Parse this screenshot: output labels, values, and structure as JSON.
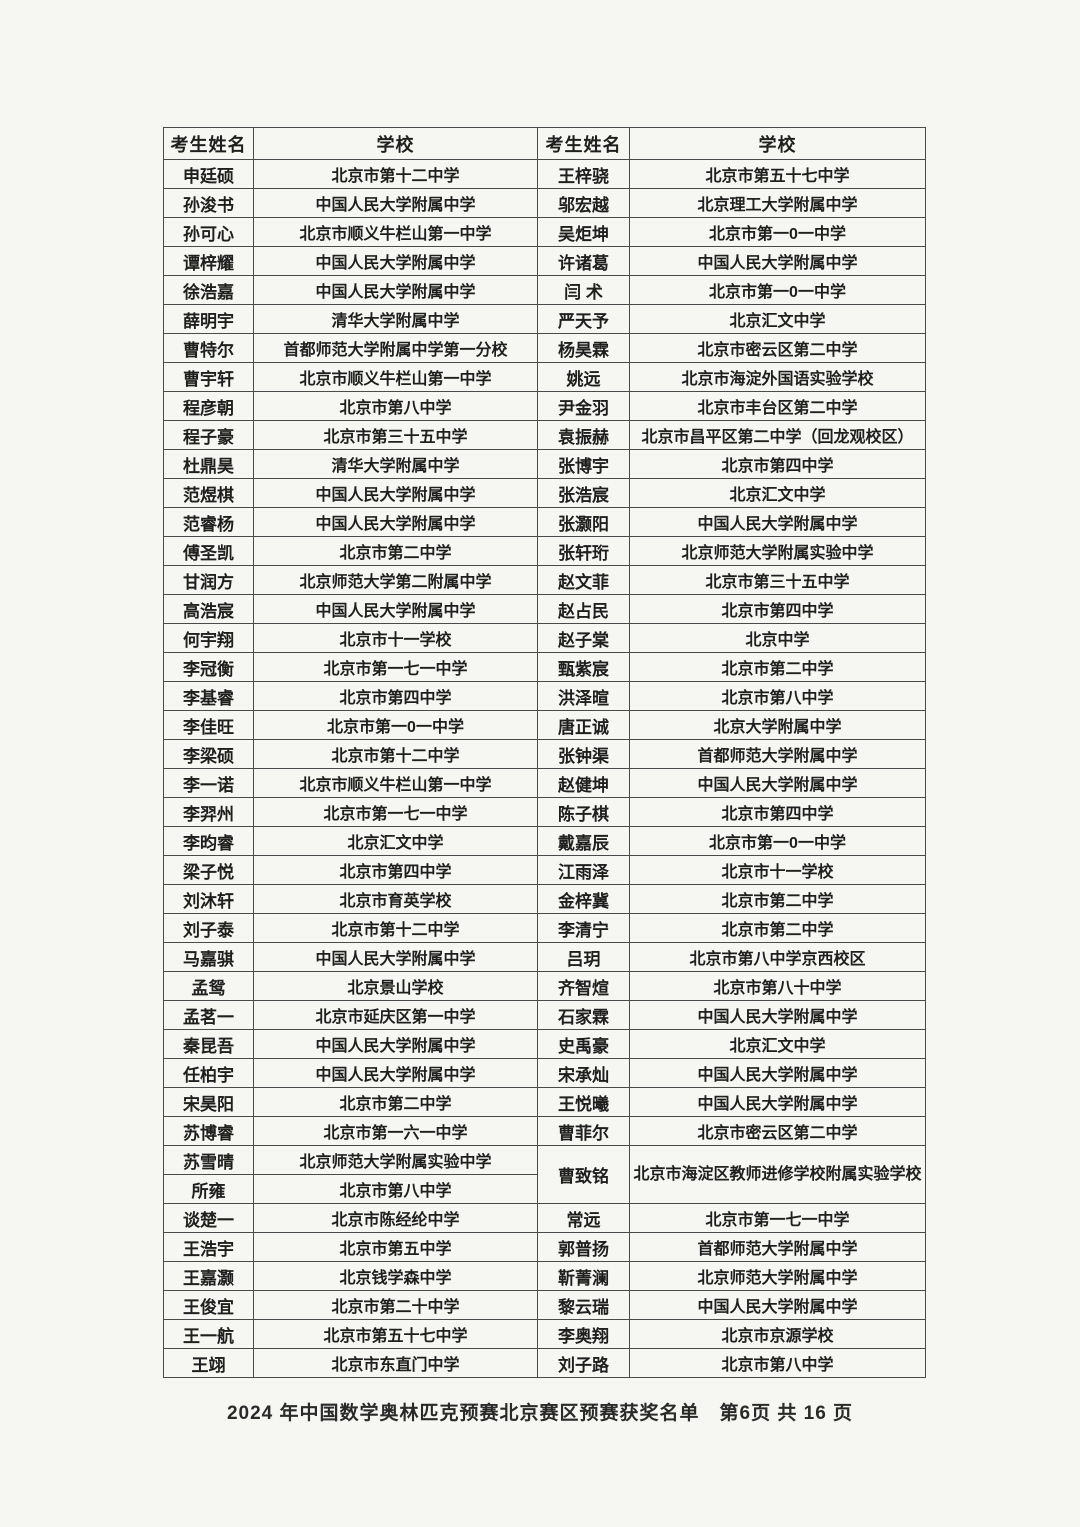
{
  "page": {
    "background": "#f6f6f3",
    "border_color": "#4a4a4a",
    "text_color": "#1f1f1f"
  },
  "table": {
    "headers": [
      "考生姓名",
      "学校",
      "考生姓名",
      "学校"
    ],
    "rows": [
      {
        "left": {
          "name": "申廷硕",
          "school": "北京市第十二中学"
        },
        "right": {
          "name": "王梓骁",
          "school": "北京市第五十七中学"
        }
      },
      {
        "left": {
          "name": "孙浚书",
          "school": "中国人民大学附属中学"
        },
        "right": {
          "name": "邬宏越",
          "school": "北京理工大学附属中学"
        }
      },
      {
        "left": {
          "name": "孙可心",
          "school": "北京市顺义牛栏山第一中学"
        },
        "right": {
          "name": "吴炬坤",
          "school": "北京市第一0一中学"
        }
      },
      {
        "left": {
          "name": "谭梓耀",
          "school": "中国人民大学附属中学"
        },
        "right": {
          "name": "许诸葛",
          "school": "中国人民大学附属中学"
        }
      },
      {
        "left": {
          "name": "徐浩嘉",
          "school": "中国人民大学附属中学"
        },
        "right": {
          "name": "闫 术",
          "school": "北京市第一0一中学"
        }
      },
      {
        "left": {
          "name": "薛明宇",
          "school": "清华大学附属中学"
        },
        "right": {
          "name": "严天予",
          "school": "北京汇文中学"
        }
      },
      {
        "left": {
          "name": "曹特尔",
          "school": "首都师范大学附属中学第一分校"
        },
        "right": {
          "name": "杨昊霖",
          "school": "北京市密云区第二中学"
        }
      },
      {
        "left": {
          "name": "曹宇轩",
          "school": "北京市顺义牛栏山第一中学"
        },
        "right": {
          "name": "姚远",
          "school": "北京市海淀外国语实验学校"
        }
      },
      {
        "left": {
          "name": "程彦朝",
          "school": "北京市第八中学"
        },
        "right": {
          "name": "尹金羽",
          "school": "北京市丰台区第二中学"
        }
      },
      {
        "left": {
          "name": "程子豪",
          "school": "北京市第三十五中学"
        },
        "right": {
          "name": "袁振赫",
          "school": "北京市昌平区第二中学（回龙观校区）"
        }
      },
      {
        "left": {
          "name": "杜鼎昊",
          "school": "清华大学附属中学"
        },
        "right": {
          "name": "张博宇",
          "school": "北京市第四中学"
        }
      },
      {
        "left": {
          "name": "范煜棋",
          "school": "中国人民大学附属中学"
        },
        "right": {
          "name": "张浩宸",
          "school": "北京汇文中学"
        }
      },
      {
        "left": {
          "name": "范睿杨",
          "school": "中国人民大学附属中学"
        },
        "right": {
          "name": "张灏阳",
          "school": "中国人民大学附属中学"
        }
      },
      {
        "left": {
          "name": "傅圣凯",
          "school": "北京市第二中学"
        },
        "right": {
          "name": "张轩珩",
          "school": "北京师范大学附属实验中学"
        }
      },
      {
        "left": {
          "name": "甘润方",
          "school": "北京师范大学第二附属中学"
        },
        "right": {
          "name": "赵文菲",
          "school": "北京市第三十五中学"
        }
      },
      {
        "left": {
          "name": "高浩宸",
          "school": "中国人民大学附属中学"
        },
        "right": {
          "name": "赵占民",
          "school": "北京市第四中学"
        }
      },
      {
        "left": {
          "name": "何宇翔",
          "school": "北京市十一学校"
        },
        "right": {
          "name": "赵子棠",
          "school": "北京中学"
        }
      },
      {
        "left": {
          "name": "李冠衡",
          "school": "北京市第一七一中学"
        },
        "right": {
          "name": "甄紫宸",
          "school": "北京市第二中学"
        }
      },
      {
        "left": {
          "name": "李基睿",
          "school": "北京市第四中学"
        },
        "right": {
          "name": "洪泽暄",
          "school": "北京市第八中学"
        }
      },
      {
        "left": {
          "name": "李佳旺",
          "school": "北京市第一0一中学"
        },
        "right": {
          "name": "唐正诚",
          "school": "北京大学附属中学"
        }
      },
      {
        "left": {
          "name": "李梁硕",
          "school": "北京市第十二中学"
        },
        "right": {
          "name": "张钟渠",
          "school": "首都师范大学附属中学"
        }
      },
      {
        "left": {
          "name": "李一诺",
          "school": "北京市顺义牛栏山第一中学"
        },
        "right": {
          "name": "赵健坤",
          "school": "中国人民大学附属中学"
        }
      },
      {
        "left": {
          "name": "李羿州",
          "school": "北京市第一七一中学"
        },
        "right": {
          "name": "陈子棋",
          "school": "北京市第四中学"
        }
      },
      {
        "left": {
          "name": "李昀睿",
          "school": "北京汇文中学"
        },
        "right": {
          "name": "戴嘉辰",
          "school": "北京市第一0一中学"
        }
      },
      {
        "left": {
          "name": "梁子悦",
          "school": "北京市第四中学"
        },
        "right": {
          "name": "江雨泽",
          "school": "北京市十一学校"
        }
      },
      {
        "left": {
          "name": "刘沐轩",
          "school": "北京市育英学校"
        },
        "right": {
          "name": "金梓冀",
          "school": "北京市第二中学"
        }
      },
      {
        "left": {
          "name": "刘子泰",
          "school": "北京市第十二中学"
        },
        "right": {
          "name": "李清宁",
          "school": "北京市第二中学"
        }
      },
      {
        "left": {
          "name": "马嘉骐",
          "school": "中国人民大学附属中学"
        },
        "right": {
          "name": "吕玥",
          "school": "北京市第八中学京西校区"
        }
      },
      {
        "left": {
          "name": "孟鸳",
          "school": "北京景山学校"
        },
        "right": {
          "name": "齐智煊",
          "school": "北京市第八十中学"
        }
      },
      {
        "left": {
          "name": "孟茗一",
          "school": "北京市延庆区第一中学"
        },
        "right": {
          "name": "石家霖",
          "school": "中国人民大学附属中学"
        }
      },
      {
        "left": {
          "name": "秦昆吾",
          "school": "中国人民大学附属中学"
        },
        "right": {
          "name": "史禹豪",
          "school": "北京汇文中学"
        }
      },
      {
        "left": {
          "name": "任柏宇",
          "school": "中国人民大学附属中学"
        },
        "right": {
          "name": "宋承灿",
          "school": "中国人民大学附属中学"
        }
      },
      {
        "left": {
          "name": "宋昊阳",
          "school": "北京市第二中学"
        },
        "right": {
          "name": "王悦曦",
          "school": "中国人民大学附属中学"
        }
      },
      {
        "left": {
          "name": "苏博睿",
          "school": "北京市第一六一中学"
        },
        "right": {
          "name": "曹菲尔",
          "school": "北京市密云区第二中学"
        }
      },
      {
        "left": {
          "name": "苏雪晴",
          "school": "北京师范大学附属实验中学"
        },
        "right": {
          "name": "曹致铭",
          "school": "北京市海淀区教师进修学校附属实验学校",
          "rowspan": 2,
          "wrap": true
        }
      },
      {
        "left": {
          "name": "所雍",
          "school": "北京市第八中学"
        },
        "right": null
      },
      {
        "left": {
          "name": "谈楚一",
          "school": "北京市陈经纶中学"
        },
        "right": {
          "name": "常远",
          "school": "北京市第一七一中学"
        }
      },
      {
        "left": {
          "name": "王浩宇",
          "school": "北京市第五中学"
        },
        "right": {
          "name": "郭普扬",
          "school": "首都师范大学附属中学"
        }
      },
      {
        "left": {
          "name": "王嘉灏",
          "school": "北京钱学森中学"
        },
        "right": {
          "name": "靳菁澜",
          "school": "北京师范大学附属中学"
        }
      },
      {
        "left": {
          "name": "王俊宜",
          "school": "北京市第二十中学"
        },
        "right": {
          "name": "黎云瑞",
          "school": "中国人民大学附属中学"
        }
      },
      {
        "left": {
          "name": "王一航",
          "school": "北京市第五十七中学"
        },
        "right": {
          "name": "李奥翔",
          "school": "北京市京源学校"
        }
      },
      {
        "left": {
          "name": "王翊",
          "school": "北京市东直门中学"
        },
        "right": {
          "name": "刘子路",
          "school": "北京市第八中学"
        }
      }
    ]
  },
  "footer": {
    "text": "2024 年中国数学奥林匹克预赛北京赛区预赛获奖名单　第6页 共 16 页"
  }
}
